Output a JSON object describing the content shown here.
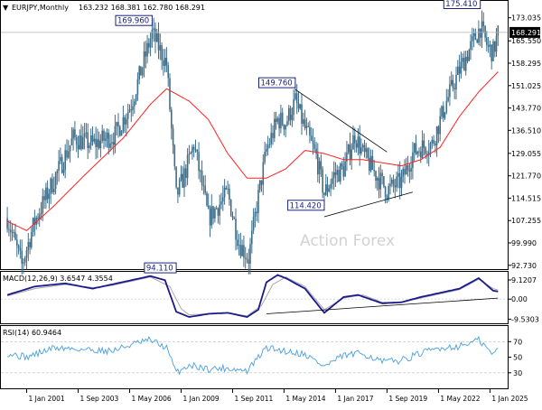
{
  "header": {
    "symbol": "EURJPY,Monthly",
    "ohlc": "163.232 168.381 162.780 168.291",
    "marker": "▼"
  },
  "watermark": "Action Forex",
  "chart_data": [
    {
      "type": "candlestick",
      "title": "EURJPY,Monthly",
      "price_ticks": [
        "173.035",
        "165.550",
        "158.295",
        "151.025",
        "143.770",
        "136.510",
        "129.055",
        "121.770",
        "114.515",
        "107.255",
        "99.990",
        "92.730"
      ],
      "tick_values": [
        173.035,
        165.55,
        158.295,
        151.025,
        143.77,
        136.51,
        129.055,
        121.77,
        114.515,
        107.255,
        99.99,
        92.73
      ],
      "ylim": [
        91.5,
        178.5
      ],
      "last_price": "168.291",
      "last_value": 168.291,
      "annotations": [
        {
          "label": "169.960",
          "date": "2007-07",
          "value": 169.96
        },
        {
          "label": "94.110",
          "date": "2008-10",
          "value": 94.11
        },
        {
          "label": "149.760",
          "date": "2014-12",
          "value": 149.76
        },
        {
          "label": "114.420",
          "date": "2016-06",
          "value": 114.42
        },
        {
          "label": "175.410",
          "date": "2024-07",
          "value": 175.41
        }
      ],
      "price_anchors": [
        [
          "2000-01",
          108.0
        ],
        [
          "2000-10",
          92.8
        ],
        [
          "2001-06",
          107.0
        ],
        [
          "2002-02",
          116.0
        ],
        [
          "2003-06",
          134.0
        ],
        [
          "2004-06",
          132.0
        ],
        [
          "2005-08",
          135.0
        ],
        [
          "2006-06",
          145.0
        ],
        [
          "2007-07",
          168.0
        ],
        [
          "2008-04",
          158.0
        ],
        [
          "2008-10",
          115.0
        ],
        [
          "2009-03",
          122.0
        ],
        [
          "2009-09",
          132.0
        ],
        [
          "2010-06",
          108.0
        ],
        [
          "2010-12",
          112.0
        ],
        [
          "2011-06",
          116.0
        ],
        [
          "2012-01",
          100.0
        ],
        [
          "2012-07",
          95.0
        ],
        [
          "2012-12",
          112.0
        ],
        [
          "2013-06",
          130.0
        ],
        [
          "2014-01",
          140.0
        ],
        [
          "2014-06",
          139.0
        ],
        [
          "2014-12",
          146.0
        ],
        [
          "2015-06",
          137.0
        ],
        [
          "2016-01",
          128.0
        ],
        [
          "2016-06",
          116.0
        ],
        [
          "2016-12",
          122.0
        ],
        [
          "2017-06",
          124.0
        ],
        [
          "2018-01",
          135.0
        ],
        [
          "2018-06",
          129.0
        ],
        [
          "2019-01",
          123.0
        ],
        [
          "2019-09",
          117.0
        ],
        [
          "2020-06",
          120.0
        ],
        [
          "2021-01",
          129.0
        ],
        [
          "2021-06",
          131.0
        ],
        [
          "2022-01",
          132.0
        ],
        [
          "2022-10",
          146.0
        ],
        [
          "2023-06",
          156.0
        ],
        [
          "2024-07",
          170.0
        ],
        [
          "2024-12",
          163.0
        ],
        [
          "2025-03",
          162.0
        ],
        [
          "2025-06",
          168.0
        ]
      ],
      "moving_average_anchors": [
        [
          "2000-01",
          107.0
        ],
        [
          "2001-01",
          104.0
        ],
        [
          "2002-06",
          112.0
        ],
        [
          "2004-01",
          122.0
        ],
        [
          "2006-01",
          134.0
        ],
        [
          "2007-06",
          145.0
        ],
        [
          "2008-04",
          150.0
        ],
        [
          "2009-06",
          146.0
        ],
        [
          "2010-06",
          140.0
        ],
        [
          "2011-06",
          129.0
        ],
        [
          "2012-06",
          121.0
        ],
        [
          "2013-06",
          121.0
        ],
        [
          "2014-06",
          124.0
        ],
        [
          "2015-06",
          130.0
        ],
        [
          "2016-06",
          129.0
        ],
        [
          "2017-06",
          127.0
        ],
        [
          "2018-06",
          127.0
        ],
        [
          "2019-06",
          126.0
        ],
        [
          "2020-06",
          125.0
        ],
        [
          "2021-06",
          127.0
        ],
        [
          "2022-06",
          131.0
        ],
        [
          "2023-06",
          141.0
        ],
        [
          "2024-06",
          149.0
        ],
        [
          "2025-06",
          155.5
        ]
      ],
      "trendlines": [
        {
          "from": [
            "2014-12",
            149.76
          ],
          "to": [
            "2019-09",
            129.5
          ]
        },
        {
          "from": [
            "2016-06",
            108.5
          ],
          "to": [
            "2021-01",
            116.5
          ]
        }
      ],
      "x_ticks": [
        "1 Jan 2001",
        "1 Sep 2003",
        "1 May 2006",
        "1 Jan 2009",
        "1 Sep 2011",
        "1 May 2014",
        "1 Jan 2017",
        "1 Sep 2019",
        "1 May 2022",
        "1 Jan 2025"
      ],
      "x_tick_dates": [
        "2001-01",
        "2003-09",
        "2006-05",
        "2009-01",
        "2011-09",
        "2014-05",
        "2017-01",
        "2019-09",
        "2022-05",
        "2025-01"
      ],
      "x_range": [
        "1999-09",
        "2025-12"
      ],
      "grid": false,
      "colors": {
        "candle": "#3f6e8a",
        "moving_average": "#ff2020",
        "marker_box": "#1a237e",
        "last_price_box": "#000000"
      }
    },
    {
      "type": "line",
      "title": "MACD(12,26,9) 3.6547 4.3554",
      "tick_labels": [
        "9.1207",
        "0.00",
        "-9.5303"
      ],
      "tick_values": [
        9.1207,
        0.0,
        -9.5303
      ],
      "ylim": [
        -11.5,
        13.0
      ],
      "series": [
        {
          "name": "MACD",
          "color": "#1a1a8c",
          "anchors": [
            [
              "2000-01",
              2.0
            ],
            [
              "2001-06",
              6.0
            ],
            [
              "2003-01",
              7.5
            ],
            [
              "2004-06",
              5.0
            ],
            [
              "2005-06",
              7.0
            ],
            [
              "2006-06",
              9.0
            ],
            [
              "2007-06",
              11.0
            ],
            [
              "2008-03",
              9.0
            ],
            [
              "2008-10",
              -6.0
            ],
            [
              "2009-06",
              -8.5
            ],
            [
              "2010-06",
              -7.0
            ],
            [
              "2011-06",
              -6.5
            ],
            [
              "2012-06",
              -8.5
            ],
            [
              "2013-01",
              -5.0
            ],
            [
              "2013-06",
              8.0
            ],
            [
              "2014-01",
              11.5
            ],
            [
              "2014-06",
              10.0
            ],
            [
              "2015-06",
              5.0
            ],
            [
              "2016-06",
              -6.5
            ],
            [
              "2017-06",
              1.0
            ],
            [
              "2018-03",
              2.0
            ],
            [
              "2019-06",
              -2.0
            ],
            [
              "2020-06",
              -1.5
            ],
            [
              "2021-06",
              1.0
            ],
            [
              "2022-06",
              3.0
            ],
            [
              "2023-06",
              5.0
            ],
            [
              "2024-06",
              10.0
            ],
            [
              "2025-03",
              4.0
            ],
            [
              "2025-06",
              3.65
            ]
          ]
        },
        {
          "name": "Signal",
          "color": "#a8a8a8",
          "anchors": [
            [
              "2000-01",
              1.5
            ],
            [
              "2001-06",
              5.0
            ],
            [
              "2003-01",
              7.0
            ],
            [
              "2004-06",
              5.5
            ],
            [
              "2005-06",
              6.5
            ],
            [
              "2006-06",
              8.5
            ],
            [
              "2007-06",
              10.5
            ],
            [
              "2008-06",
              6.0
            ],
            [
              "2009-01",
              -4.5
            ],
            [
              "2009-06",
              -7.5
            ],
            [
              "2010-06",
              -7.0
            ],
            [
              "2011-06",
              -6.5
            ],
            [
              "2012-06",
              -8.0
            ],
            [
              "2013-03",
              -3.0
            ],
            [
              "2013-10",
              7.0
            ],
            [
              "2014-06",
              10.5
            ],
            [
              "2015-06",
              6.0
            ],
            [
              "2016-06",
              -5.0
            ],
            [
              "2017-06",
              0.5
            ],
            [
              "2018-06",
              2.0
            ],
            [
              "2019-06",
              -1.5
            ],
            [
              "2020-06",
              -1.5
            ],
            [
              "2021-06",
              0.5
            ],
            [
              "2022-06",
              2.5
            ],
            [
              "2023-06",
              4.5
            ],
            [
              "2024-06",
              9.5
            ],
            [
              "2025-03",
              5.0
            ],
            [
              "2025-06",
              4.36
            ]
          ]
        }
      ],
      "trendline": {
        "from": [
          "2013-06",
          -7.0
        ],
        "to": [
          "2025-06",
          0.5
        ]
      }
    },
    {
      "type": "line",
      "title": "RSI(14) 60.9464",
      "tick_labels": [
        "70",
        "50",
        "30"
      ],
      "tick_values": [
        70,
        50,
        30
      ],
      "ylim": [
        10,
        90
      ],
      "series": [
        {
          "name": "RSI",
          "color": "#4a9fe0",
          "anchors": [
            [
              "2000-01",
              55
            ],
            [
              "2001-01",
              50
            ],
            [
              "2002-06",
              62
            ],
            [
              "2004-01",
              60
            ],
            [
              "2005-06",
              58
            ],
            [
              "2006-06",
              66
            ],
            [
              "2007-06",
              72
            ],
            [
              "2008-04",
              62
            ],
            [
              "2008-10",
              30
            ],
            [
              "2009-06",
              40
            ],
            [
              "2010-06",
              35
            ],
            [
              "2011-06",
              36
            ],
            [
              "2012-06",
              32
            ],
            [
              "2013-06",
              62
            ],
            [
              "2014-06",
              58
            ],
            [
              "2015-06",
              54
            ],
            [
              "2016-06",
              38
            ],
            [
              "2017-06",
              52
            ],
            [
              "2018-06",
              55
            ],
            [
              "2019-06",
              44
            ],
            [
              "2020-06",
              46
            ],
            [
              "2021-06",
              55
            ],
            [
              "2022-06",
              62
            ],
            [
              "2023-06",
              64
            ],
            [
              "2024-06",
              72
            ],
            [
              "2025-03",
              53
            ],
            [
              "2025-06",
              60.95
            ]
          ]
        }
      ]
    }
  ]
}
